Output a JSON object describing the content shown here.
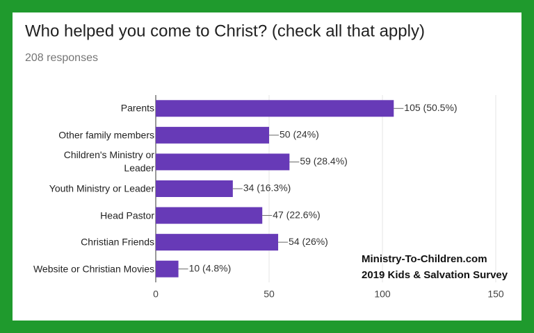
{
  "chart_data": {
    "type": "bar",
    "orientation": "horizontal",
    "title": "Who helped you come to Christ? (check all that apply)",
    "subtitle": "208 responses",
    "categories": [
      "Parents",
      "Other family members",
      "Children's Ministry or Leader",
      "Youth Ministry or Leader",
      "Head Pastor",
      "Christian Friends",
      "Website or Christian Movies"
    ],
    "values": [
      105,
      50,
      59,
      34,
      47,
      54,
      10
    ],
    "value_labels": [
      "105 (50.5%)",
      "50 (24%)",
      "59 (28.4%)",
      "34 (16.3%)",
      "47 (22.6%)",
      "54 (26%)",
      "10 (4.8%)"
    ],
    "color": "#673ab7",
    "xlim": [
      0,
      150
    ],
    "xticks": [
      0,
      50,
      100,
      150
    ],
    "grid": true,
    "annotations": [
      "Ministry-To-Children.com",
      "2019 Kids & Salvation Survey"
    ]
  }
}
